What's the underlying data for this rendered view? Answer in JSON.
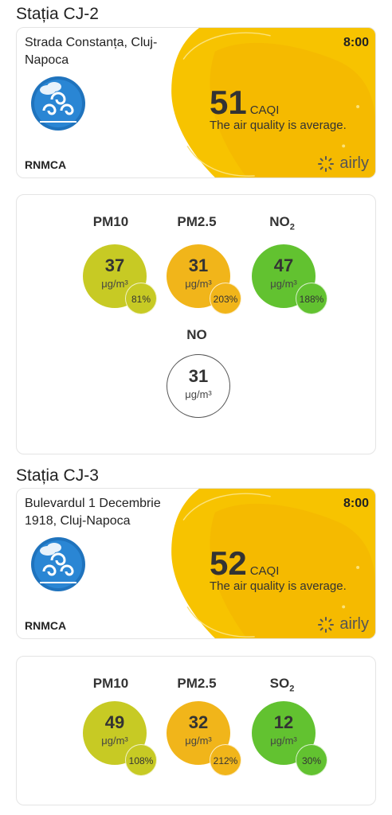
{
  "colors": {
    "yellow": "#f7c300",
    "orange": "#f1b51a",
    "olive": "#c7ca24",
    "green": "#62c230",
    "logo_blue": "#1f73bd"
  },
  "stations": [
    {
      "title": "Stația CJ-2",
      "address": "Strada Constanța, Cluj-Napoca",
      "time": "8:00",
      "caqi_value": "51",
      "caqi_unit": "CAQI",
      "caqi_desc": "The air quality is average.",
      "agency": "RNMCA",
      "brand": "airly",
      "pollutants": [
        {
          "label": "PM10",
          "value": "37",
          "unit": "μg/m³",
          "percent": "81%",
          "color": "olive"
        },
        {
          "label": "PM2.5",
          "value": "31",
          "unit": "μg/m³",
          "percent": "203%",
          "color": "orange"
        },
        {
          "label": "NO",
          "sub": "2",
          "value": "47",
          "unit": "μg/m³",
          "percent": "188%",
          "color": "green"
        },
        {
          "label": "NO",
          "value": "31",
          "unit": "μg/m³",
          "color": "white"
        }
      ]
    },
    {
      "title": "Stația CJ-3",
      "address": "Bulevardul 1 Decembrie 1918, Cluj-Napoca",
      "time": "8:00",
      "caqi_value": "52",
      "caqi_unit": "CAQI",
      "caqi_desc": "The air quality is average.",
      "agency": "RNMCA",
      "brand": "airly",
      "pollutants": [
        {
          "label": "PM10",
          "value": "49",
          "unit": "μg/m³",
          "percent": "108%",
          "color": "olive"
        },
        {
          "label": "PM2.5",
          "value": "32",
          "unit": "μg/m³",
          "percent": "212%",
          "color": "orange"
        },
        {
          "label": "SO",
          "sub": "2",
          "value": "12",
          "unit": "μg/m³",
          "percent": "30%",
          "color": "green"
        }
      ]
    }
  ]
}
